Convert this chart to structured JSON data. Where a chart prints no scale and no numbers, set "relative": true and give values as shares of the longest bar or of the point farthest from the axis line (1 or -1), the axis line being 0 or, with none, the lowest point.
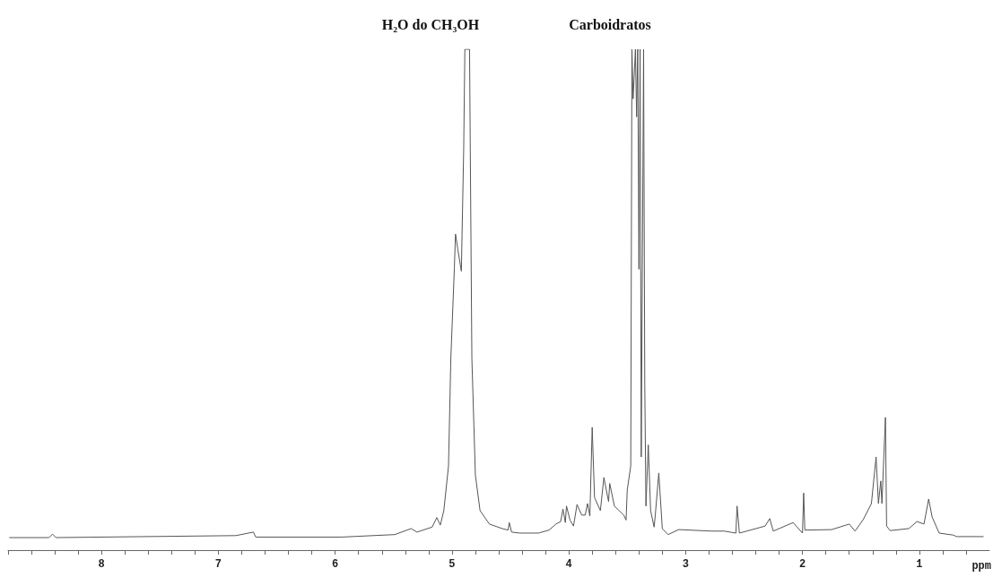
{
  "chart_data": {
    "type": "line",
    "relative": true,
    "xlabel": "ppm",
    "annotations": [
      "H₂O do CH₃OH",
      "Carboidratos"
    ],
    "xlim": [
      8.8,
      0.4
    ],
    "xticks": [
      {
        "value": 8.8,
        "label": null
      },
      {
        "value": 8.6,
        "label": null
      },
      {
        "value": 8.4,
        "label": null
      },
      {
        "value": 8.2,
        "label": null
      },
      8,
      {
        "value": 7.8,
        "label": null
      },
      {
        "value": 7.6,
        "label": null
      },
      {
        "value": 7.4,
        "label": null
      },
      {
        "value": 7.2,
        "label": null
      },
      7,
      {
        "value": 6.8,
        "label": null
      },
      {
        "value": 6.6,
        "label": null
      },
      {
        "value": 6.4,
        "label": null
      },
      {
        "value": 6.2,
        "label": null
      },
      6,
      {
        "value": 5.8,
        "label": null
      },
      {
        "value": 5.6,
        "label": null
      },
      {
        "value": 5.4,
        "label": null
      },
      {
        "value": 5.2,
        "label": null
      },
      5,
      {
        "value": 4.8,
        "label": null
      },
      {
        "value": 4.6,
        "label": null
      },
      {
        "value": 4.4,
        "label": null
      },
      {
        "value": 4.2,
        "label": null
      },
      4,
      {
        "value": 3.8,
        "label": null
      },
      {
        "value": 3.6,
        "label": null
      },
      {
        "value": 3.4,
        "label": null
      },
      {
        "value": 3.2,
        "label": null
      },
      3,
      {
        "value": 2.8,
        "label": null
      },
      {
        "value": 2.6,
        "label": null
      },
      {
        "value": 2.4,
        "label": null
      },
      {
        "value": 2.2,
        "label": null
      },
      2,
      {
        "value": 1.8,
        "label": null
      },
      {
        "value": 1.6,
        "label": null
      },
      {
        "value": 1.4,
        "label": null
      },
      {
        "value": 1.2,
        "label": null
      },
      1,
      {
        "value": 0.8,
        "label": null
      },
      {
        "value": 0.6,
        "label": null
      }
    ],
    "series": [
      {
        "color": "#555555",
        "x": [
          8.79,
          8.45,
          8.42,
          8.39,
          6.85,
          6.7,
          6.68,
          5.95,
          5.49,
          5.35,
          5.3,
          5.17,
          5.13,
          5.1,
          5.07,
          5.03,
          5.01,
          4.98,
          4.97,
          4.95,
          4.92,
          4.9,
          4.89,
          4.85,
          4.83,
          4.8,
          4.76,
          4.68,
          4.57,
          4.52,
          4.51,
          4.49,
          4.42,
          4.26,
          4.17,
          4.11,
          4.07,
          4.05,
          4.03,
          4.02,
          3.99,
          3.96,
          3.93,
          3.89,
          3.86,
          3.84,
          3.82,
          3.8,
          3.78,
          3.73,
          3.7,
          3.66,
          3.65,
          3.61,
          3.57,
          3.53,
          3.51,
          3.5,
          3.47,
          3.46,
          3.45,
          3.43,
          3.42,
          3.41,
          3.4,
          3.39,
          3.38,
          3.36,
          3.35,
          3.34,
          3.32,
          3.3,
          3.27,
          3.26,
          3.23,
          3.2,
          3.15,
          3.06,
          2.78,
          2.67,
          2.57,
          2.56,
          2.54,
          2.32,
          2.28,
          2.25,
          2.08,
          2.0,
          1.99,
          1.98,
          1.75,
          1.6,
          1.55,
          1.48,
          1.41,
          1.37,
          1.35,
          1.33,
          1.32,
          1.29,
          1.28,
          1.25,
          1.09,
          1.02,
          0.96,
          0.92,
          0.89,
          0.83,
          0.71,
          0.68,
          0.45
        ],
        "values": [
          0.025,
          0.025,
          0.032,
          0.025,
          0.029,
          0.036,
          0.026,
          0.026,
          0.031,
          0.043,
          0.036,
          0.046,
          0.065,
          0.05,
          0.079,
          0.168,
          0.383,
          0.562,
          0.631,
          0.6,
          0.557,
          0.8,
          1,
          1,
          0.383,
          0.15,
          0.079,
          0.052,
          0.043,
          0.04,
          0.055,
          0.036,
          0.034,
          0.034,
          0.04,
          0.052,
          0.057,
          0.082,
          0.055,
          0.088,
          0.06,
          0.048,
          0.091,
          0.07,
          0.07,
          0.093,
          0.068,
          0.245,
          0.105,
          0.079,
          0.145,
          0.097,
          0.133,
          0.088,
          0.079,
          0.07,
          0.06,
          0.12,
          0.168,
          1,
          0.901,
          1,
          0.865,
          1,
          0.561,
          1,
          0.186,
          1,
          0.329,
          0.088,
          0.21,
          0.079,
          0.046,
          0.07,
          0.154,
          0.043,
          0.031,
          0.041,
          0.038,
          0.038,
          0.034,
          0.088,
          0.034,
          0.048,
          0.063,
          0.038,
          0.055,
          0.034,
          0.114,
          0.04,
          0.041,
          0.052,
          0.038,
          0.061,
          0.093,
          0.186,
          0.093,
          0.138,
          0.093,
          0.265,
          0.048,
          0.039,
          0.043,
          0.057,
          0.052,
          0.102,
          0.066,
          0.034,
          0.03,
          0.027,
          0.027
        ]
      }
    ]
  }
}
